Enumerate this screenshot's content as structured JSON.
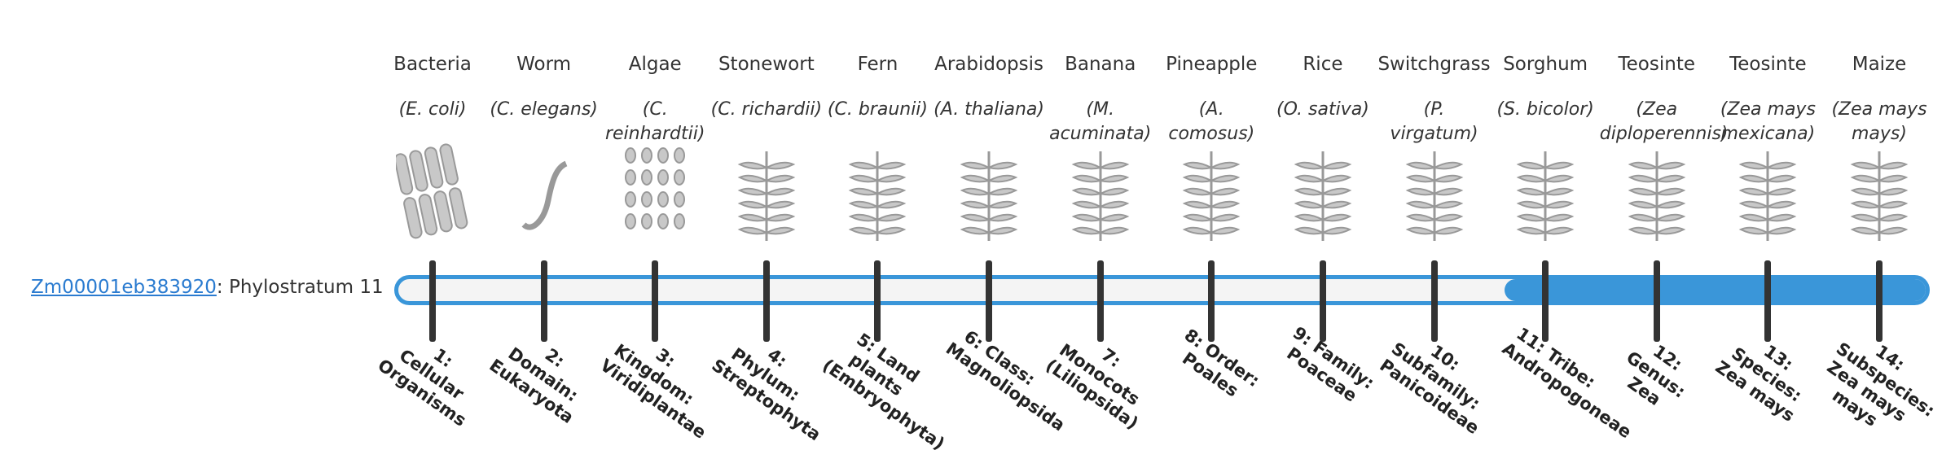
{
  "gene": {
    "id": "Zm00001eb383920",
    "label": ": Phylostratum",
    "stratum": 11
  },
  "organisms": [
    {
      "name": "Bacteria",
      "species": "(E. coli)"
    },
    {
      "name": "Worm",
      "species": "(C. elegans)"
    },
    {
      "name": "Algae",
      "species": "(C. reinhardtii)"
    },
    {
      "name": "Stonewort",
      "species": "(C. richardii)"
    },
    {
      "name": "Fern",
      "species": "(C. braunii)"
    },
    {
      "name": "Arabidopsis",
      "species": "(A. thaliana)"
    },
    {
      "name": "Banana",
      "species": "(M. acuminata)"
    },
    {
      "name": "Pineapple",
      "species": "(A. comosus)"
    },
    {
      "name": "Rice",
      "species": "(O. sativa)"
    },
    {
      "name": "Switchgrass",
      "species": "(P. virgatum)"
    },
    {
      "name": "Sorghum",
      "species": "(S. bicolor)"
    },
    {
      "name": "Teosinte",
      "species": "(Zea diploperennis)"
    },
    {
      "name": "Teosinte",
      "species": "(Zea mays mexicana)"
    },
    {
      "name": "Maize",
      "species": "(Zea mays mays)"
    }
  ],
  "strata": [
    "1: Cellular Organisms",
    "2: Domain: Eukaryota",
    "3: Kingdom: Viridiplantae",
    "4: Phylum: Streptophyta",
    "5: Land plants (Embryophyta)",
    "6: Class: Magnoliopsida",
    "7: Monocots (Liliopsida)",
    "8: Order: Poales",
    "9: Family: Poaceae",
    "10: Subfamily: Panicoideae",
    "11: Tribe: Andropogoneae",
    "12: Genus: Zea",
    "13: Species: Zea mays",
    "14: Subspecies: Zea mays mays"
  ]
}
